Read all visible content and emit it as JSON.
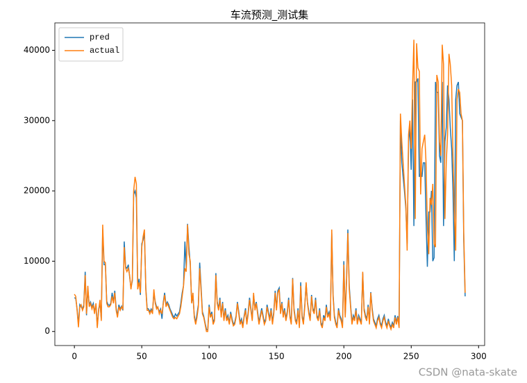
{
  "chart_data": {
    "type": "line",
    "title": "车流预测_测试集",
    "watermark": "CSDN @nata-skate",
    "x": [
      0,
      1,
      2,
      3,
      4,
      5,
      6,
      7,
      8,
      9,
      10,
      11,
      12,
      13,
      14,
      15,
      16,
      17,
      18,
      19,
      20,
      21,
      22,
      23,
      24,
      25,
      26,
      27,
      28,
      29,
      30,
      31,
      32,
      33,
      34,
      35,
      36,
      37,
      38,
      39,
      40,
      41,
      42,
      43,
      44,
      45,
      46,
      47,
      48,
      49,
      50,
      51,
      52,
      53,
      54,
      55,
      56,
      57,
      58,
      59,
      60,
      61,
      62,
      63,
      64,
      65,
      66,
      67,
      68,
      69,
      70,
      71,
      72,
      73,
      74,
      75,
      76,
      77,
      78,
      79,
      80,
      81,
      82,
      83,
      84,
      85,
      86,
      87,
      88,
      89,
      90,
      91,
      92,
      93,
      94,
      95,
      96,
      97,
      98,
      99,
      100,
      101,
      102,
      103,
      104,
      105,
      106,
      107,
      108,
      109,
      110,
      111,
      112,
      113,
      114,
      115,
      116,
      117,
      118,
      119,
      120,
      121,
      122,
      123,
      124,
      125,
      126,
      127,
      128,
      129,
      130,
      131,
      132,
      133,
      134,
      135,
      136,
      137,
      138,
      139,
      140,
      141,
      142,
      143,
      144,
      145,
      146,
      147,
      148,
      149,
      150,
      151,
      152,
      153,
      154,
      155,
      156,
      157,
      158,
      159,
      160,
      161,
      162,
      163,
      164,
      165,
      166,
      167,
      168,
      169,
      170,
      171,
      172,
      173,
      174,
      175,
      176,
      177,
      178,
      179,
      180,
      181,
      182,
      183,
      184,
      185,
      186,
      187,
      188,
      189,
      190,
      191,
      192,
      193,
      194,
      195,
      196,
      197,
      198,
      199,
      200,
      201,
      202,
      203,
      204,
      205,
      206,
      207,
      208,
      209,
      210,
      211,
      212,
      213,
      214,
      215,
      216,
      217,
      218,
      219,
      220,
      221,
      222,
      223,
      224,
      225,
      226,
      227,
      228,
      229,
      230,
      231,
      232,
      233,
      234,
      235,
      236,
      237,
      238,
      239,
      240,
      241,
      242,
      243,
      244,
      245,
      246,
      247,
      248,
      249,
      250,
      251,
      252,
      253,
      254,
      255,
      256,
      257,
      258,
      259,
      260,
      261,
      262,
      263,
      264,
      265,
      266,
      267,
      268,
      269,
      270,
      271,
      272,
      273,
      274,
      275,
      276,
      277,
      278,
      279,
      280,
      281,
      282,
      283,
      284,
      285,
      286,
      287,
      288,
      289,
      290
    ],
    "series": [
      {
        "name": "pred",
        "color": "#1f77b4",
        "values": [
          4800,
          4700,
          3200,
          1000,
          3800,
          3500,
          3200,
          3800,
          8500,
          2300,
          6000,
          3800,
          4200,
          3500,
          4000,
          2800,
          3800,
          800,
          3200,
          4000,
          1800,
          14500,
          9500,
          9500,
          4300,
          3800,
          3700,
          4000,
          5500,
          4200,
          5800,
          3300,
          2200,
          3800,
          3200,
          3600,
          3000,
          12800,
          9200,
          9000,
          9500,
          7800,
          6200,
          7200,
          19500,
          20000,
          19000,
          6500,
          7500,
          5200,
          12500,
          13000,
          14000,
          6200,
          3300,
          3200,
          2800,
          3200,
          2800,
          5500,
          4200,
          3500,
          3300,
          2800,
          3200,
          1800,
          4200,
          5500,
          3800,
          4200,
          3800,
          3200,
          2800,
          2300,
          2000,
          2500,
          2200,
          2500,
          2800,
          4000,
          5500,
          6500,
          12800,
          9000,
          15300,
          12000,
          9500,
          4200,
          5000,
          2300,
          1200,
          2500,
          3800,
          9800,
          6500,
          2800,
          2200,
          1200,
          300,
          200,
          3800,
          2200,
          2800,
          1300,
          1800,
          8300,
          4300,
          3200,
          4800,
          2300,
          4200,
          1800,
          3300,
          1800,
          2300,
          1200,
          2800,
          1800,
          1000,
          1300,
          2200,
          4200,
          2800,
          1300,
          1800,
          800,
          2200,
          3300,
          1200,
          2800,
          4800,
          3300,
          1800,
          5200,
          3300,
          4200,
          2800,
          1300,
          2300,
          3300,
          2300,
          1300,
          1800,
          3800,
          2800,
          1800,
          3300,
          1300,
          2800,
          5800,
          3300,
          5800,
          6200,
          2800,
          4200,
          2300,
          3300,
          1800,
          2800,
          4800,
          2300,
          1300,
          7600,
          3300,
          1800,
          1300,
          3300,
          800,
          7000,
          2300,
          1300,
          3800,
          6800,
          4200,
          2800,
          1800,
          5200,
          3300,
          2800,
          4800,
          2300,
          1800,
          3300,
          1300,
          800,
          2300,
          1800,
          3800,
          2300,
          2800,
          1800,
          14000,
          5300,
          2300,
          1300,
          800,
          3300,
          2300,
          1800,
          800,
          10000,
          2300,
          7500,
          14500,
          6500,
          3800,
          1300,
          2300,
          1800,
          3300,
          1300,
          2300,
          1800,
          1300,
          8300,
          3300,
          2300,
          1800,
          3800,
          1300,
          5600,
          3300,
          1800,
          1300,
          800,
          1800,
          2300,
          1300,
          800,
          1800,
          2300,
          1300,
          800,
          1800,
          1000,
          600,
          1300,
          800,
          2300,
          1300,
          2200,
          800,
          30000,
          24000,
          22000,
          20000,
          17500,
          12500,
          27000,
          29000,
          23000,
          33000,
          15000,
          35500,
          35500,
          36000,
          22000,
          22500,
          22000,
          24000,
          24000,
          16000,
          9200,
          17000,
          17000,
          20000,
          10000,
          10500,
          35500,
          34000,
          34000,
          25000,
          24000,
          35500,
          15000,
          27000,
          29000,
          35000,
          33000,
          29000,
          26000,
          20000,
          10000,
          33000,
          35000,
          35500,
          31000,
          30500,
          30000,
          13000,
          5000
        ]
      },
      {
        "name": "actual",
        "color": "#ff7f0e",
        "values": [
          5300,
          5000,
          3000,
          600,
          3500,
          3800,
          3000,
          3500,
          8000,
          2500,
          6500,
          3500,
          4000,
          3200,
          3800,
          2500,
          4000,
          500,
          3000,
          4500,
          1500,
          15200,
          10000,
          9800,
          4000,
          3500,
          3500,
          3800,
          5000,
          4000,
          5500,
          3000,
          2000,
          3500,
          3000,
          3500,
          3200,
          12000,
          9000,
          8500,
          9000,
          8000,
          6000,
          7500,
          20000,
          22000,
          21000,
          6000,
          7000,
          5500,
          12000,
          13500,
          14500,
          6000,
          3000,
          3000,
          2500,
          3000,
          2500,
          6000,
          4000,
          3200,
          3500,
          2500,
          3000,
          2500,
          4000,
          5200,
          3500,
          4000,
          3500,
          3000,
          2500,
          2000,
          1800,
          2000,
          1800,
          2200,
          2500,
          3500,
          5000,
          6500,
          9000,
          8500,
          15200,
          11000,
          10000,
          4000,
          5500,
          2000,
          1000,
          2000,
          3500,
          9000,
          6000,
          2500,
          2000,
          1000,
          0,
          0,
          3500,
          2000,
          2500,
          1000,
          1500,
          8000,
          4000,
          3000,
          4500,
          2000,
          4000,
          1500,
          3000,
          1500,
          2000,
          1000,
          2500,
          1500,
          800,
          1000,
          2000,
          4000,
          2500,
          1000,
          1500,
          500,
          2000,
          3000,
          1000,
          2500,
          4500,
          3000,
          1500,
          5500,
          3000,
          4000,
          2500,
          1000,
          2000,
          3000,
          2000,
          1000,
          1500,
          3500,
          2500,
          1500,
          3000,
          1000,
          2500,
          5500,
          3000,
          5500,
          6000,
          2500,
          4000,
          2000,
          3000,
          1500,
          2500,
          4500,
          2000,
          1000,
          7500,
          3000,
          1500,
          1000,
          3000,
          500,
          6500,
          2000,
          1000,
          3500,
          7000,
          4000,
          2500,
          1500,
          5000,
          3000,
          2500,
          4500,
          2000,
          1500,
          3000,
          1000,
          500,
          2000,
          1500,
          3500,
          2000,
          2500,
          1500,
          14500,
          5000,
          2000,
          1000,
          500,
          3000,
          2000,
          1500,
          500,
          9500,
          2000,
          7000,
          14000,
          6000,
          3500,
          1000,
          2000,
          1500,
          3000,
          1000,
          2000,
          1500,
          1000,
          8500,
          3000,
          2000,
          1500,
          3500,
          1000,
          5500,
          3000,
          1500,
          1000,
          500,
          1500,
          2000,
          1000,
          500,
          1500,
          2000,
          1000,
          500,
          1500,
          800,
          300,
          1000,
          500,
          2000,
          1000,
          2000,
          500,
          31000,
          27000,
          24000,
          21000,
          18000,
          11500,
          28000,
          30000,
          26000,
          35000,
          41500,
          16000,
          41000,
          37500,
          37000,
          19500,
          26000,
          27000,
          28000,
          24000,
          15000,
          11000,
          19000,
          18000,
          21000,
          12500,
          12000,
          36500,
          35500,
          27000,
          25000,
          40800,
          38000,
          16000,
          24000,
          28000,
          39500,
          38000,
          35000,
          25000,
          17000,
          11500,
          33000,
          34500,
          34000,
          31000,
          30000,
          14000,
          5500
        ]
      }
    ],
    "xlim": [
      -14.5,
      304.5
    ],
    "ylim": [
      -2000,
      43900
    ],
    "xticks": [
      0,
      50,
      100,
      150,
      200,
      250,
      300
    ],
    "yticks": [
      0,
      10000,
      20000,
      30000,
      40000
    ],
    "legend": "upper left"
  }
}
